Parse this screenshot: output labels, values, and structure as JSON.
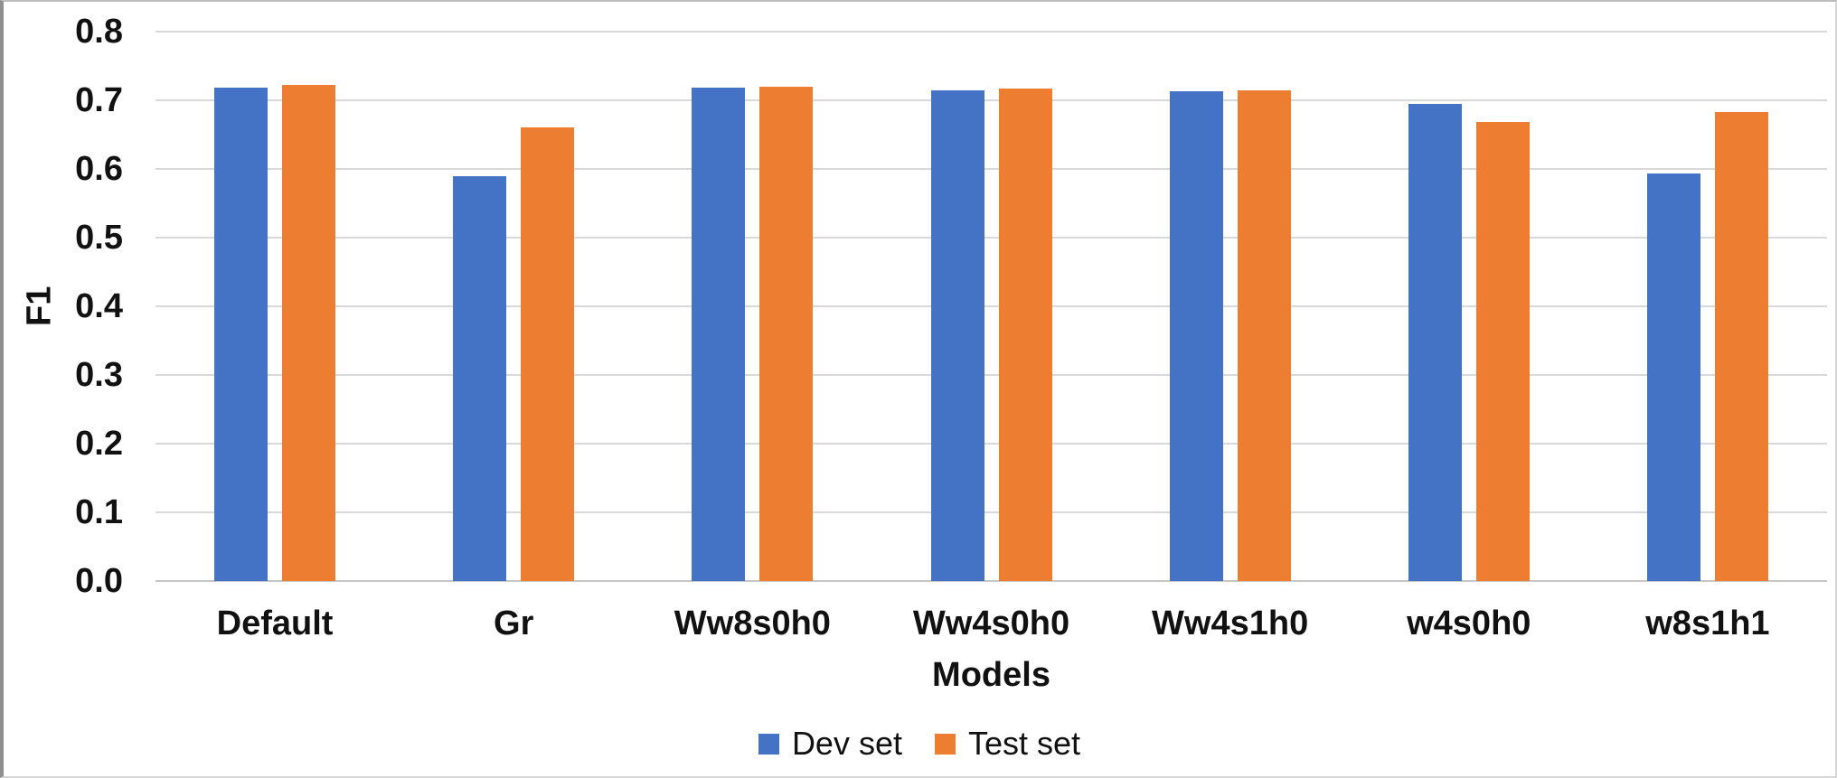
{
  "chart_data": {
    "type": "bar",
    "title": "",
    "categories": [
      "Default",
      "Gr",
      "Ww8s0h0",
      "Ww4s0h0",
      "Ww4s1h0",
      "w4s0h0",
      "w8s1h1"
    ],
    "series": [
      {
        "name": "Dev set",
        "color": "#4472C4",
        "values": [
          0.719,
          0.589,
          0.719,
          0.715,
          0.713,
          0.695,
          0.593
        ]
      },
      {
        "name": "Test set",
        "color": "#ED7D31",
        "values": [
          0.723,
          0.66,
          0.72,
          0.717,
          0.715,
          0.668,
          0.683
        ]
      }
    ],
    "xlabel": "Models",
    "ylabel": "F1",
    "ylim": [
      0.0,
      0.8
    ],
    "ytick_step": 0.1,
    "ytick_labels": [
      "0.0",
      "0.1",
      "0.2",
      "0.3",
      "0.4",
      "0.5",
      "0.6",
      "0.7",
      "0.8"
    ],
    "grid": true,
    "legend_position": "bottom",
    "gridline_color": "#D9D9D9",
    "axisline_color": "#C6C6C6",
    "text_color": "#111111"
  }
}
